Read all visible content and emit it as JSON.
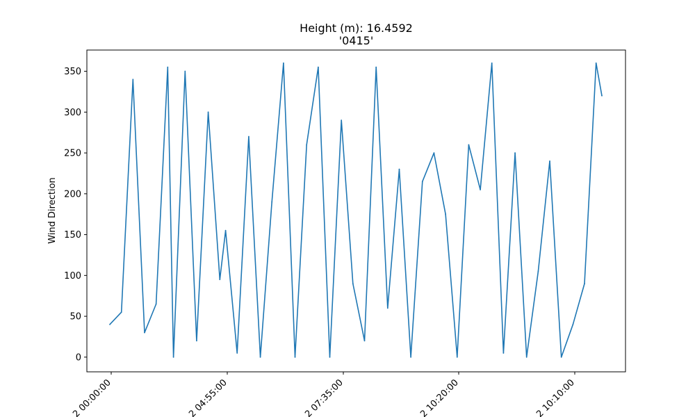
{
  "chart_data": {
    "type": "line",
    "title": "Height (m): 16.4592",
    "subtitle": "'0415'",
    "xlabel": "",
    "ylabel": "Wind Direction",
    "ylim": [
      -18,
      376
    ],
    "yticks": [
      0,
      50,
      100,
      150,
      200,
      250,
      300,
      350
    ],
    "xticks": [
      "2 00:00:00",
      "2 04:55:00",
      "2 07:35:00",
      "2 10:20:00",
      "2 10:10:00"
    ],
    "grid": false,
    "legend": "none",
    "series": [
      {
        "color": "#1f77b4",
        "x": [
          0,
          0.1,
          0.2,
          0.3,
          0.4,
          0.5,
          0.55,
          0.65,
          0.75,
          0.85,
          0.95,
          1.0,
          1.1,
          1.2,
          1.3,
          1.4,
          1.5,
          1.6,
          1.7,
          1.8,
          1.9,
          2.0,
          2.1,
          2.2,
          2.3,
          2.4,
          2.5,
          2.6,
          2.7,
          2.8,
          2.9,
          3.0,
          3.1,
          3.2,
          3.3,
          3.4,
          3.5,
          3.6,
          3.7,
          3.8,
          3.9,
          4.0,
          4.1,
          4.2,
          4.25
        ],
        "y": [
          40,
          55,
          340,
          30,
          65,
          355,
          0,
          350,
          20,
          300,
          95,
          155,
          5,
          270,
          0,
          190,
          360,
          0,
          260,
          355,
          0,
          290,
          90,
          20,
          355,
          60,
          230,
          0,
          215,
          250,
          175,
          0,
          260,
          205,
          360,
          5,
          250,
          0,
          105,
          240,
          0,
          40,
          90,
          360,
          320
        ]
      }
    ]
  }
}
